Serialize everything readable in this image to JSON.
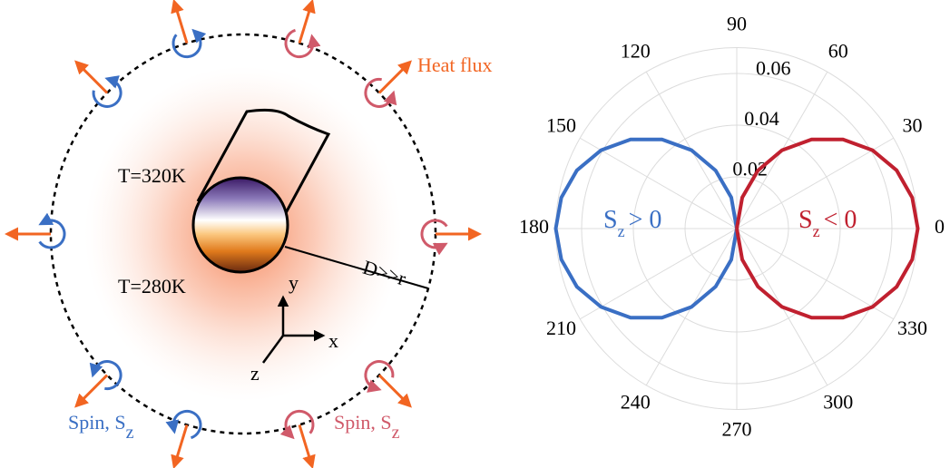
{
  "diagram": {
    "heat_flux_label": "Heat flux",
    "temp_top": "T=320K",
    "temp_bottom": "T=280K",
    "distance_label": "D>>r",
    "axes": {
      "x": "x",
      "y": "y",
      "z": "z"
    },
    "spin_left": {
      "text": "Spin, S",
      "sub": "z"
    },
    "spin_right": {
      "text": "Spin, S",
      "sub": "z"
    }
  },
  "chart_data": {
    "type": "polar",
    "theta_ticks": [
      0,
      30,
      60,
      90,
      120,
      150,
      180,
      210,
      240,
      270,
      300,
      330
    ],
    "rlim": [
      0,
      0.07
    ],
    "rticks": [
      0.02,
      0.04,
      0.06
    ],
    "grid": true,
    "series": [
      {
        "label": {
          "main": "S",
          "sub": "z",
          "rest": "> 0"
        },
        "color": "#3a6fc4",
        "theta": [
          90,
          100,
          110,
          120,
          130,
          140,
          150,
          160,
          170,
          180,
          190,
          200,
          210,
          220,
          230,
          240,
          250,
          260,
          270
        ],
        "r": [
          0,
          0.0122,
          0.0239,
          0.035,
          0.045,
          0.0536,
          0.0606,
          0.0658,
          0.0689,
          0.07,
          0.0689,
          0.0658,
          0.0606,
          0.0536,
          0.045,
          0.035,
          0.0239,
          0.0122,
          0
        ]
      },
      {
        "label": {
          "main": "S",
          "sub": "z",
          "rest": "< 0"
        },
        "color": "#c0202f",
        "theta": [
          -90,
          -80,
          -70,
          -60,
          -50,
          -40,
          -30,
          -20,
          -10,
          0,
          10,
          20,
          30,
          40,
          50,
          60,
          70,
          80,
          90
        ],
        "r": [
          0,
          0.0122,
          0.0239,
          0.035,
          0.045,
          0.0536,
          0.0606,
          0.0658,
          0.0689,
          0.07,
          0.0689,
          0.0658,
          0.0606,
          0.0536,
          0.045,
          0.035,
          0.0239,
          0.0122,
          0
        ]
      }
    ]
  }
}
